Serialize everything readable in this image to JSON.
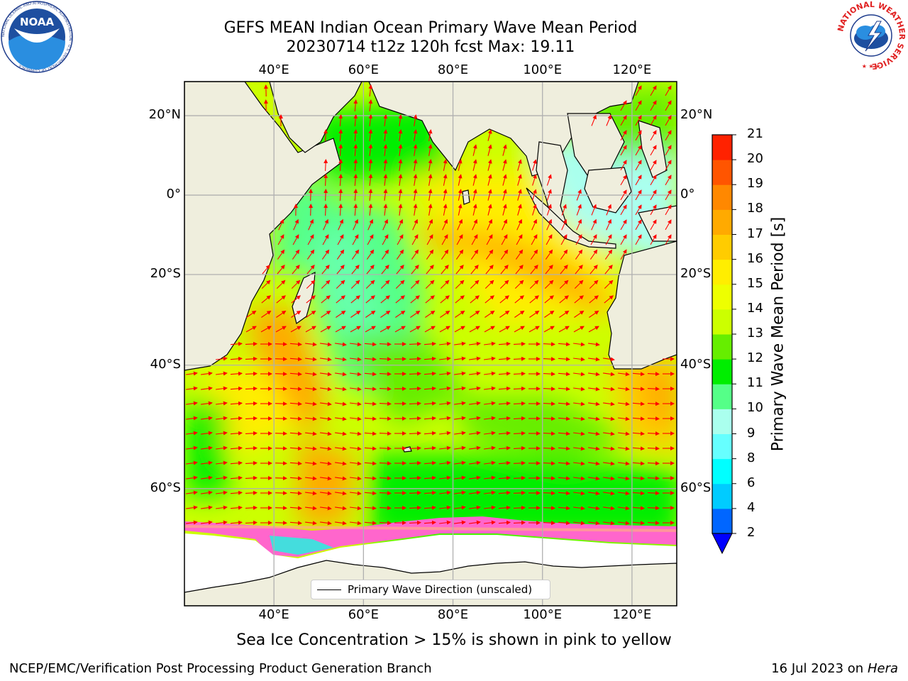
{
  "header": {
    "title_line1": "GEFS MEAN Indian Ocean Primary Wave Mean Period",
    "title_line2": "20230714 t12z 120h fcst   Max: 19.11"
  },
  "logos": {
    "noaa_text": "NOAA",
    "noaa_ring_text": "NATIONAL OCEANIC AND ATMOSPHERIC ADMINISTRATION · U.S. DEPARTMENT OF COMMERCE",
    "nws_ring_text": "NATIONAL WEATHER SERVICE"
  },
  "axes": {
    "lon_ticks": [
      "40°E",
      "60°E",
      "80°E",
      "100°E",
      "120°E"
    ],
    "lat_ticks": [
      "20°N",
      "0°",
      "20°S",
      "40°S",
      "60°S"
    ],
    "lon_values": [
      40,
      60,
      80,
      100,
      120
    ],
    "lat_values": [
      20,
      0,
      -20,
      -40,
      -60
    ]
  },
  "map_extent": {
    "lon_range": [
      20,
      130
    ],
    "lat_range": [
      -72,
      28
    ]
  },
  "colorbar": {
    "label": "Primary Wave Mean Period [s]",
    "tick_labels": [
      "21",
      "20",
      "19",
      "18",
      "17",
      "16",
      "15",
      "14",
      "13",
      "12",
      "11",
      "10",
      "9",
      "8",
      "6",
      "4",
      "2"
    ],
    "levels": [
      2,
      4,
      6,
      8,
      9,
      10,
      11,
      12,
      13,
      14,
      15,
      16,
      17,
      18,
      19,
      20,
      21
    ],
    "colors": [
      "#0066ff",
      "#00ccff",
      "#00ffff",
      "#66ffff",
      "#aaffee",
      "#55ff88",
      "#00ee00",
      "#66ee00",
      "#ccff00",
      "#eeff00",
      "#ffee00",
      "#ffcc00",
      "#ffaa00",
      "#ff8800",
      "#ff5500",
      "#ff2200"
    ],
    "extend_color": "#0000ff"
  },
  "legend": {
    "label": "Primary Wave Direction (unscaled)"
  },
  "subtitle": "Sea Ice Concentration > 15% is shown in pink to yellow",
  "footer": {
    "left": "NCEP/EMC/Verification Post Processing Product Generation Branch",
    "right_date": "16 Jul 2023 on ",
    "right_host": "Hera"
  },
  "style": {
    "land": "#efeedd",
    "arrow": "#ff0000",
    "grid": "#b0b0b0",
    "sea_ice": "#ff66cc",
    "ice_shelf": "#ffffff"
  }
}
